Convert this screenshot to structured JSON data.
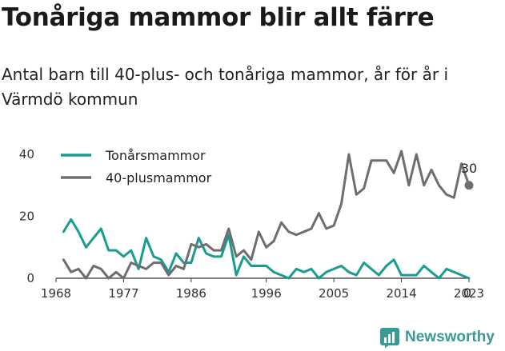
{
  "title": "Tonåriga mammor blir allt färre",
  "subtitle": "Antal barn till 40-plus- och tonåriga mammor, år för år i Värmdö kommun",
  "brand": {
    "name": "Newsworthy",
    "icon": "newsworthy-logo-icon",
    "color": "#3a9a96"
  },
  "chart_data": {
    "type": "line",
    "x": [
      1968,
      1969,
      1970,
      1971,
      1972,
      1973,
      1974,
      1975,
      1976,
      1977,
      1978,
      1979,
      1980,
      1981,
      1982,
      1983,
      1984,
      1985,
      1986,
      1987,
      1988,
      1989,
      1990,
      1991,
      1992,
      1993,
      1994,
      1995,
      1996,
      1997,
      1998,
      1999,
      2000,
      2001,
      2002,
      2003,
      2004,
      2005,
      2006,
      2007,
      2008,
      2009,
      2010,
      2011,
      2012,
      2013,
      2014,
      2015,
      2016,
      2017,
      2018,
      2019,
      2020,
      2021,
      2022,
      2023
    ],
    "series": [
      {
        "name": "Tonårsmammor",
        "color": "#1a9c8f",
        "values": [
          null,
          15,
          19,
          15,
          10,
          13,
          16,
          9,
          9,
          7,
          9,
          3,
          13,
          7,
          6,
          2,
          8,
          5,
          5,
          13,
          8,
          7,
          7,
          14,
          1,
          7,
          4,
          4,
          4,
          2,
          1,
          0,
          3,
          2,
          3,
          0,
          2,
          3,
          4,
          2,
          1,
          5,
          3,
          1,
          4,
          6,
          1,
          1,
          1,
          4,
          2,
          0,
          3,
          2,
          1,
          0
        ]
      },
      {
        "name": "40-plusmammor",
        "color": "#6d6d72",
        "values": [
          null,
          6,
          2,
          3,
          0,
          4,
          3,
          0,
          2,
          0,
          5,
          4,
          3,
          5,
          5,
          1,
          4,
          3,
          11,
          10,
          11,
          9,
          9,
          16,
          7,
          9,
          6,
          15,
          10,
          12,
          18,
          15,
          14,
          15,
          16,
          21,
          16,
          17,
          24,
          40,
          27,
          29,
          38,
          38,
          38,
          34,
          41,
          30,
          40,
          30,
          35,
          30,
          27,
          26,
          37,
          30
        ]
      }
    ],
    "xticks": [
      "1968",
      "1977",
      "1986",
      "1996",
      "2005",
      "2014",
      "2023"
    ],
    "yticks": [
      "0",
      "20",
      "40"
    ],
    "xlim": [
      1968,
      2023
    ],
    "ylim": [
      0,
      40
    ],
    "legend": "top-left",
    "grid": false,
    "end_labels": [
      {
        "series": "40-plusmammor",
        "x": 2023,
        "y": 30,
        "text": "30"
      },
      {
        "series": "Tonårsmammor",
        "x": 2023,
        "y": 0,
        "text": "0"
      }
    ]
  }
}
